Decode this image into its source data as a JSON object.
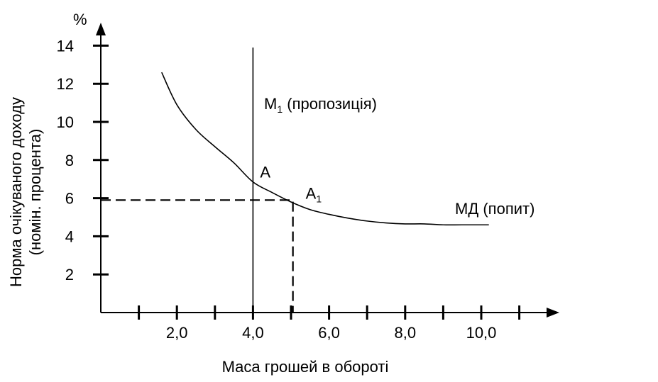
{
  "chart_data": {
    "type": "line",
    "title": "",
    "xlabel": "Маса грошей в обороті",
    "ylabel_line1": "Норма очікуваного доходу",
    "ylabel_line2": "(номін. процента)",
    "y_unit": "%",
    "xlim": [
      0,
      11.6
    ],
    "ylim": [
      0,
      14.8
    ],
    "x_ticks": [
      1,
      2,
      3,
      4,
      5,
      6,
      7,
      8,
      9,
      10,
      11
    ],
    "x_tick_labels": [
      {
        "x": 2,
        "text": "2,0"
      },
      {
        "x": 4,
        "text": "4,0"
      },
      {
        "x": 6,
        "text": "6,0"
      },
      {
        "x": 8,
        "text": "8,0"
      },
      {
        "x": 10,
        "text": "10,0"
      }
    ],
    "y_ticks": [
      2,
      4,
      6,
      8,
      10,
      12,
      14
    ],
    "y_tick_labels": [
      "2",
      "4",
      "6",
      "8",
      "10",
      "12",
      "14"
    ],
    "grid": false,
    "series": [
      {
        "name": "МД (попит)",
        "x": [
          1.6,
          2.0,
          2.5,
          3.0,
          3.5,
          4.0,
          4.5,
          5.0,
          5.5,
          6.0,
          6.5,
          7.0,
          7.5,
          8.0,
          8.5,
          9.0,
          9.5,
          10.2
        ],
        "y": [
          12.6,
          10.9,
          9.6,
          8.7,
          7.85,
          6.85,
          6.3,
          5.8,
          5.4,
          5.15,
          4.95,
          4.8,
          4.7,
          4.65,
          4.65,
          4.6,
          4.6,
          4.6
        ]
      },
      {
        "name": "M1 (пропозиція)",
        "x": [
          4.0,
          4.0
        ],
        "y": [
          0,
          13.9
        ]
      }
    ],
    "guides": {
      "x": 5.05,
      "y": 5.9
    },
    "points": [
      {
        "label": "A",
        "x": 4.0,
        "y": 6.85
      },
      {
        "label": "A",
        "sub": "1",
        "x": 5.05,
        "y": 5.9
      }
    ],
    "annotations": {
      "supply_main": "M",
      "supply_sub": "1",
      "supply_tail": " (пропозиція)",
      "demand": "МД (попит)"
    }
  }
}
